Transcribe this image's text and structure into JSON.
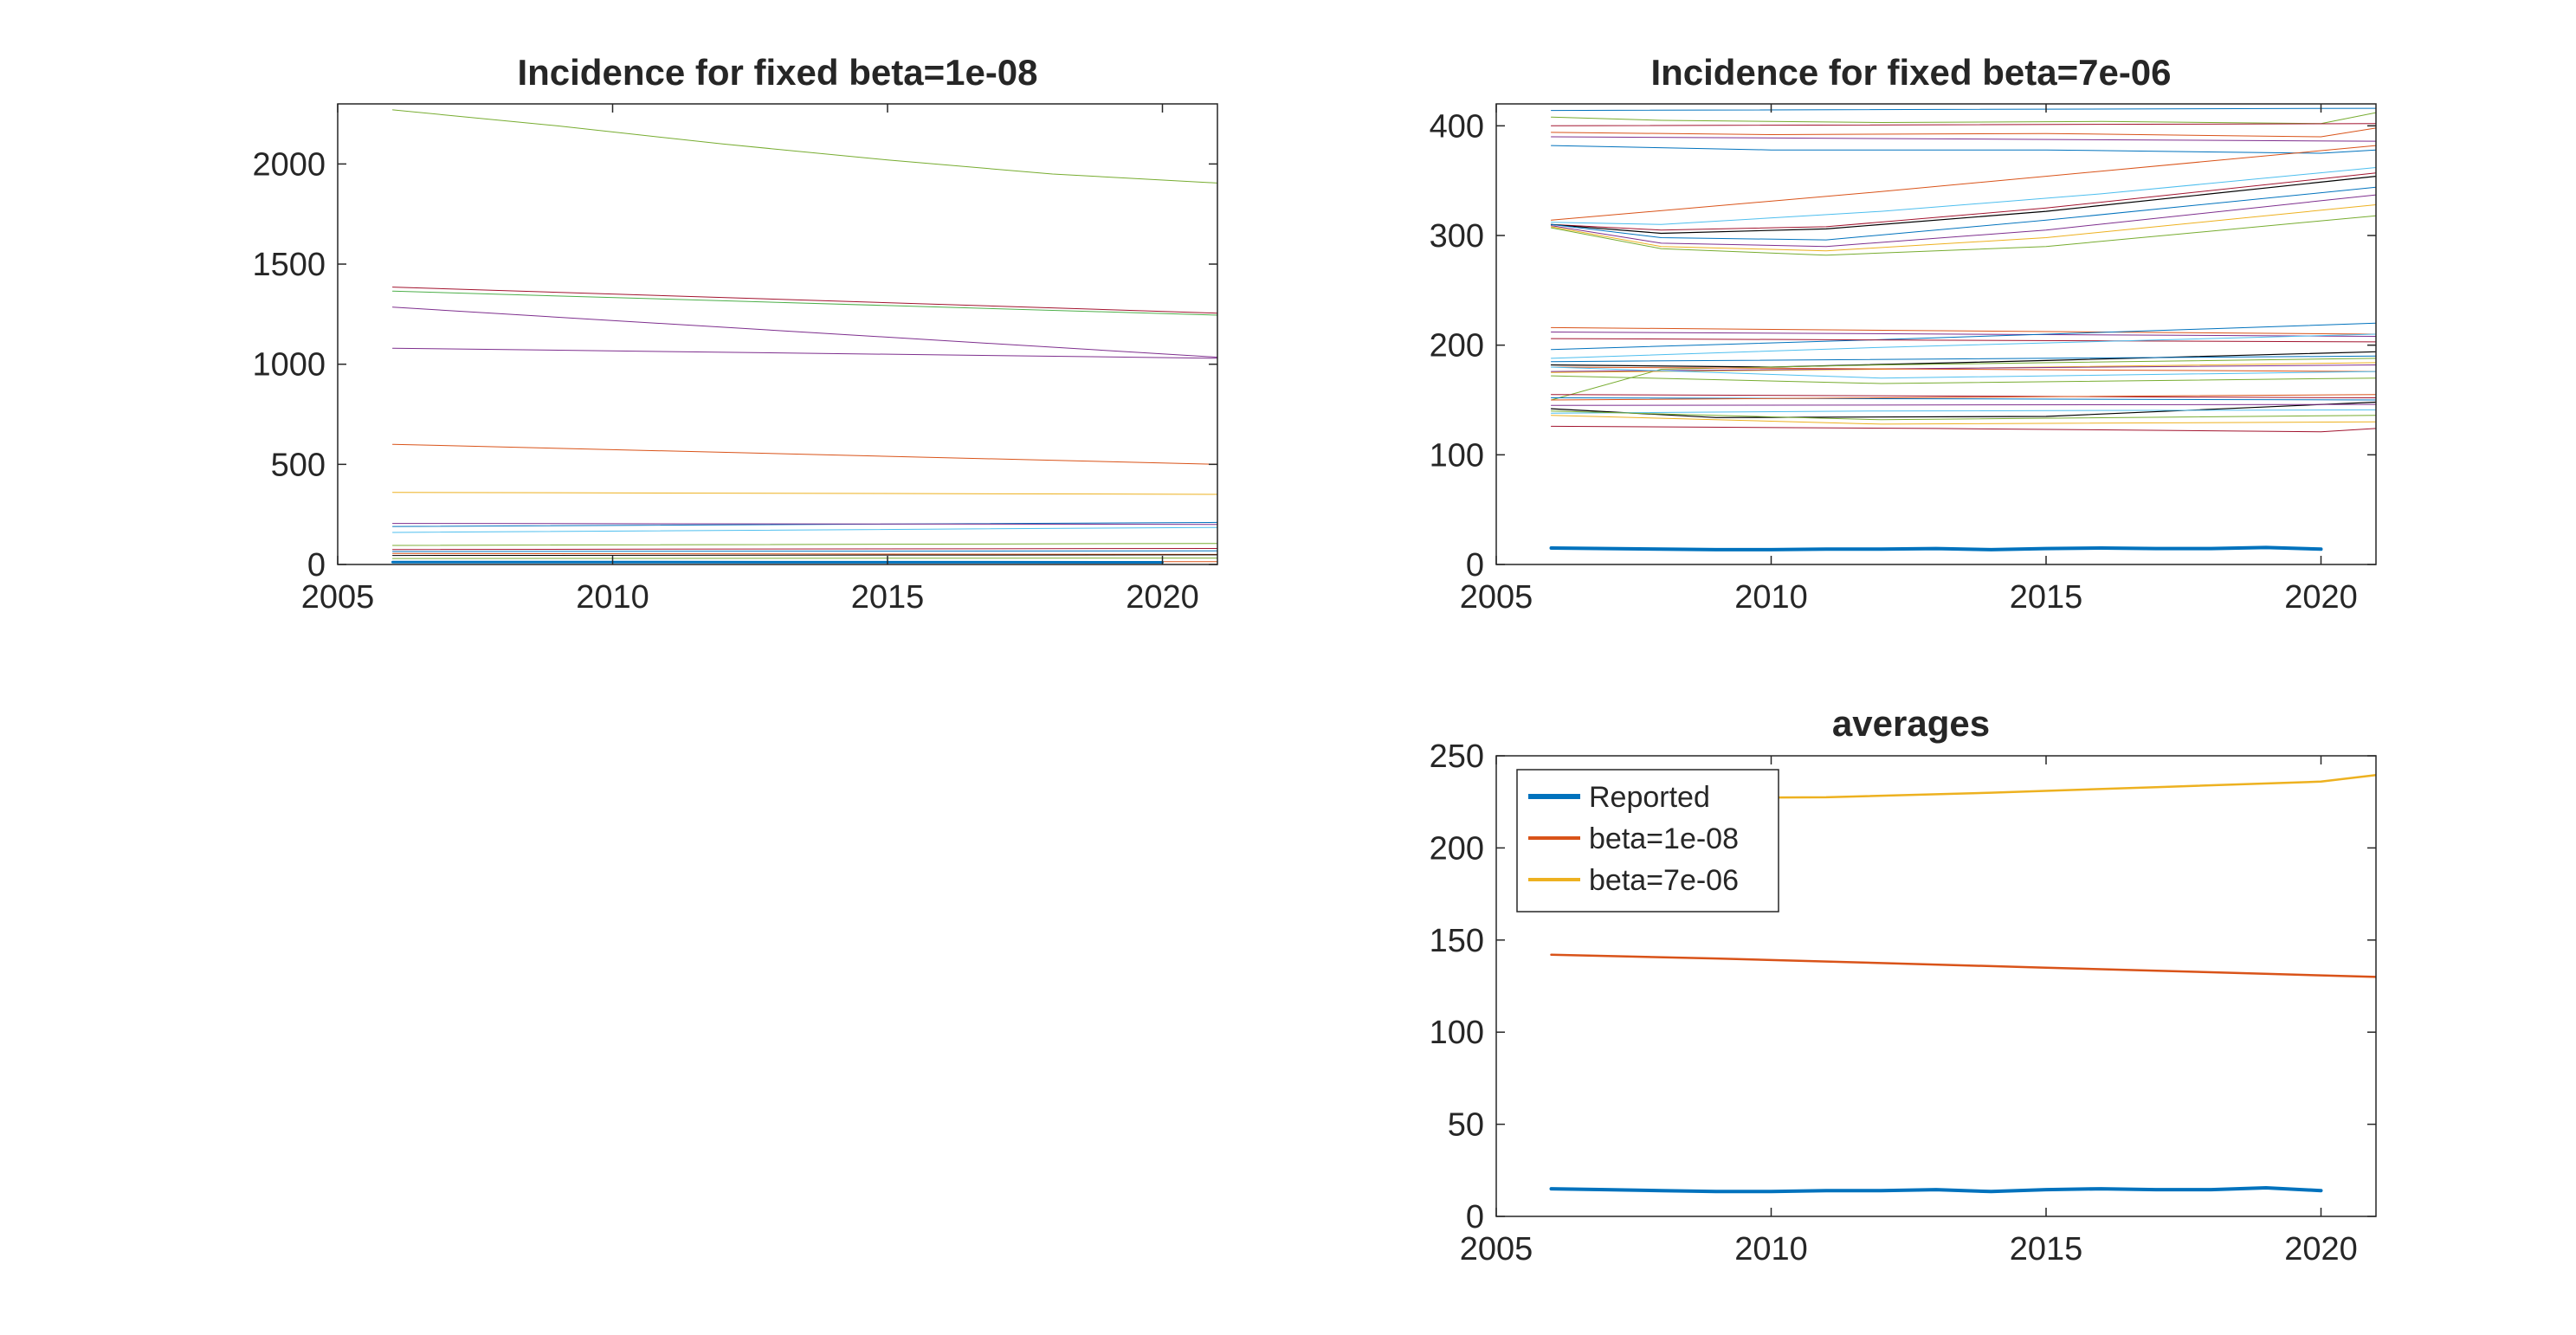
{
  "chart_data": [
    {
      "type": "line",
      "title": "Incidence for fixed beta=1e-08",
      "xlim": [
        2005,
        2021
      ],
      "ylim": [
        0,
        2300
      ],
      "xticks": [
        2005,
        2010,
        2015,
        2020
      ],
      "yticks": [
        0,
        500,
        1000,
        1500,
        2000
      ],
      "grid": false,
      "series": [
        {
          "color": "#77ac30",
          "width": 1,
          "x": [
            2006,
            2009,
            2012,
            2015,
            2018,
            2021
          ],
          "y": [
            2270,
            2190,
            2100,
            2020,
            1950,
            1905
          ]
        },
        {
          "color": "#a2142f",
          "width": 1,
          "x": [
            2006,
            2021
          ],
          "y": [
            1385,
            1255
          ]
        },
        {
          "color": "#4daf4a",
          "width": 1,
          "x": [
            2006,
            2021
          ],
          "y": [
            1365,
            1245
          ]
        },
        {
          "color": "#7e2f8e",
          "width": 1,
          "x": [
            2006,
            2021
          ],
          "y": [
            1285,
            1035
          ]
        },
        {
          "color": "#7e2f8e",
          "width": 1,
          "x": [
            2006,
            2021
          ],
          "y": [
            1080,
            1030
          ]
        },
        {
          "color": "#d95319",
          "width": 1,
          "x": [
            2006,
            2021
          ],
          "y": [
            600,
            500
          ]
        },
        {
          "color": "#edb120",
          "width": 1,
          "x": [
            2006,
            2021
          ],
          "y": [
            360,
            350
          ]
        },
        {
          "color": "#0072bd",
          "width": 1,
          "x": [
            2006,
            2021
          ],
          "y": [
            190,
            210
          ]
        },
        {
          "color": "#7e2f8e",
          "width": 1,
          "x": [
            2006,
            2021
          ],
          "y": [
            205,
            200
          ]
        },
        {
          "color": "#4dbeee",
          "width": 1,
          "x": [
            2006,
            2021
          ],
          "y": [
            160,
            185
          ]
        },
        {
          "color": "#77ac30",
          "width": 1,
          "x": [
            2006,
            2021
          ],
          "y": [
            95,
            105
          ]
        },
        {
          "color": "#a2142f",
          "width": 1,
          "x": [
            2006,
            2021
          ],
          "y": [
            75,
            80
          ]
        },
        {
          "color": "#0072bd",
          "width": 1,
          "x": [
            2006,
            2021
          ],
          "y": [
            65,
            68
          ]
        },
        {
          "color": "#d95319",
          "width": 1,
          "x": [
            2006,
            2021
          ],
          "y": [
            55,
            50
          ]
        },
        {
          "color": "#000000",
          "width": 1,
          "x": [
            2006,
            2021
          ],
          "y": [
            45,
            48
          ]
        },
        {
          "color": "#77ac30",
          "width": 1,
          "x": [
            2006,
            2021
          ],
          "y": [
            30,
            32
          ]
        },
        {
          "color": "#d95319",
          "width": 1,
          "x": [
            2006,
            2021
          ],
          "y": [
            15,
            14
          ]
        },
        {
          "color": "#0072bd",
          "width": 3,
          "x": [
            2006,
            2020
          ],
          "y": [
            12,
            11
          ]
        }
      ]
    },
    {
      "type": "line",
      "title": "Incidence for fixed beta=7e-06",
      "xlim": [
        2005,
        2021
      ],
      "ylim": [
        0,
        420
      ],
      "xticks": [
        2005,
        2010,
        2015,
        2020
      ],
      "yticks": [
        0,
        100,
        200,
        300,
        400
      ],
      "grid": false,
      "series": [
        {
          "color": "#0072bd",
          "width": 1,
          "x": [
            2006,
            2021
          ],
          "y": [
            414,
            416
          ]
        },
        {
          "color": "#77ac30",
          "width": 1,
          "x": [
            2006,
            2008,
            2012,
            2016,
            2020,
            2021
          ],
          "y": [
            408,
            405,
            403,
            404,
            402,
            412
          ]
        },
        {
          "color": "#a2142f",
          "width": 1,
          "x": [
            2006,
            2021
          ],
          "y": [
            400,
            402
          ]
        },
        {
          "color": "#d95319",
          "width": 1,
          "x": [
            2006,
            2010,
            2015,
            2020,
            2021
          ],
          "y": [
            394,
            392,
            393,
            390,
            398
          ]
        },
        {
          "color": "#7e2f8e",
          "width": 1,
          "x": [
            2006,
            2021
          ],
          "y": [
            390,
            386
          ]
        },
        {
          "color": "#0072bd",
          "width": 1,
          "x": [
            2006,
            2010,
            2015,
            2020,
            2021
          ],
          "y": [
            382,
            378,
            378,
            375,
            378
          ]
        },
        {
          "color": "#d95319",
          "width": 1,
          "x": [
            2006,
            2012,
            2018,
            2021
          ],
          "y": [
            314,
            340,
            368,
            382
          ]
        },
        {
          "color": "#4dbeee",
          "width": 1,
          "x": [
            2006,
            2008,
            2012,
            2016,
            2021
          ],
          "y": [
            312,
            310,
            322,
            338,
            362
          ]
        },
        {
          "color": "#a2142f",
          "width": 1,
          "x": [
            2006,
            2008,
            2011,
            2015,
            2021
          ],
          "y": [
            310,
            305,
            308,
            325,
            357
          ]
        },
        {
          "color": "#000000",
          "width": 1.2,
          "x": [
            2006,
            2008,
            2011,
            2015,
            2021
          ],
          "y": [
            310,
            302,
            306,
            322,
            354
          ]
        },
        {
          "color": "#0072bd",
          "width": 1,
          "x": [
            2006,
            2008,
            2011,
            2015,
            2021
          ],
          "y": [
            310,
            298,
            296,
            314,
            344
          ]
        },
        {
          "color": "#7e2f8e",
          "width": 1,
          "x": [
            2006,
            2008,
            2011,
            2015,
            2021
          ],
          "y": [
            309,
            293,
            290,
            305,
            337
          ]
        },
        {
          "color": "#edb120",
          "width": 1,
          "x": [
            2006,
            2008,
            2011,
            2015,
            2021
          ],
          "y": [
            308,
            290,
            286,
            298,
            328
          ]
        },
        {
          "color": "#77ac30",
          "width": 1,
          "x": [
            2006,
            2008,
            2011,
            2015,
            2021
          ],
          "y": [
            307,
            288,
            282,
            290,
            318
          ]
        },
        {
          "color": "#d95319",
          "width": 1,
          "x": [
            2006,
            2021
          ],
          "y": [
            216,
            210
          ]
        },
        {
          "color": "#7e2f8e",
          "width": 1,
          "x": [
            2006,
            2021
          ],
          "y": [
            212,
            208
          ]
        },
        {
          "color": "#0072bd",
          "width": 1,
          "x": [
            2006,
            2012,
            2018,
            2021
          ],
          "y": [
            196,
            205,
            215,
            220
          ]
        },
        {
          "color": "#a2142f",
          "width": 1,
          "x": [
            2006,
            2021
          ],
          "y": [
            206,
            203
          ]
        },
        {
          "color": "#4dbeee",
          "width": 1,
          "x": [
            2006,
            2012,
            2021
          ],
          "y": [
            188,
            198,
            210
          ]
        },
        {
          "color": "#000000",
          "width": 1.2,
          "x": [
            2006,
            2010,
            2015,
            2021
          ],
          "y": [
            182,
            180,
            186,
            194
          ]
        },
        {
          "color": "#0072bd",
          "width": 1,
          "x": [
            2006,
            2021
          ],
          "y": [
            185,
            190
          ]
        },
        {
          "color": "#77ac30",
          "width": 1,
          "x": [
            2006,
            2008,
            2012,
            2021
          ],
          "y": [
            150,
            178,
            182,
            188
          ]
        },
        {
          "color": "#edb120",
          "width": 1,
          "x": [
            2006,
            2012,
            2021
          ],
          "y": [
            175,
            178,
            184
          ]
        },
        {
          "color": "#7e2f8e",
          "width": 1,
          "x": [
            2006,
            2021
          ],
          "y": [
            176,
            182
          ]
        },
        {
          "color": "#d95319",
          "width": 1,
          "x": [
            2006,
            2021
          ],
          "y": [
            180,
            176
          ]
        },
        {
          "color": "#4dbeee",
          "width": 1,
          "x": [
            2006,
            2012,
            2021
          ],
          "y": [
            180,
            170,
            176
          ]
        },
        {
          "color": "#77ac30",
          "width": 1,
          "x": [
            2006,
            2012,
            2021
          ],
          "y": [
            172,
            165,
            170
          ]
        },
        {
          "color": "#a2142f",
          "width": 1,
          "x": [
            2006,
            2021
          ],
          "y": [
            155,
            152
          ]
        },
        {
          "color": "#0072bd",
          "width": 1,
          "x": [
            2006,
            2021
          ],
          "y": [
            152,
            150
          ]
        },
        {
          "color": "#d95319",
          "width": 1,
          "x": [
            2006,
            2021
          ],
          "y": [
            150,
            155
          ]
        },
        {
          "color": "#000000",
          "width": 1.2,
          "x": [
            2006,
            2009,
            2015,
            2021
          ],
          "y": [
            142,
            134,
            135,
            148
          ]
        },
        {
          "color": "#7e2f8e",
          "width": 1,
          "x": [
            2006,
            2021
          ],
          "y": [
            145,
            146
          ]
        },
        {
          "color": "#4dbeee",
          "width": 1,
          "x": [
            2006,
            2012,
            2021
          ],
          "y": [
            138,
            140,
            141
          ]
        },
        {
          "color": "#77ac30",
          "width": 1,
          "x": [
            2006,
            2012,
            2021
          ],
          "y": [
            140,
            132,
            136
          ]
        },
        {
          "color": "#edb120",
          "width": 1,
          "x": [
            2006,
            2012,
            2021
          ],
          "y": [
            136,
            128,
            130
          ]
        },
        {
          "color": "#a2142f",
          "width": 1,
          "x": [
            2006,
            2013,
            2020,
            2021
          ],
          "y": [
            126,
            124,
            121,
            124
          ]
        },
        {
          "color": "#0072bd",
          "width": 4,
          "x": [
            2006,
            2007,
            2008,
            2009,
            2010,
            2011,
            2012,
            2013,
            2014,
            2015,
            2016,
            2017,
            2018,
            2019,
            2020
          ],
          "y": [
            15,
            14.5,
            14,
            13.5,
            13.5,
            14,
            14,
            14.5,
            13.5,
            14.5,
            15,
            14.5,
            14.5,
            15.5,
            14
          ]
        }
      ]
    },
    {
      "type": "line",
      "title": "averages",
      "xlim": [
        2005,
        2021
      ],
      "ylim": [
        0,
        250
      ],
      "xticks": [
        2005,
        2010,
        2015,
        2020
      ],
      "yticks": [
        0,
        50,
        100,
        150,
        200,
        250
      ],
      "grid": false,
      "legend": "top-left",
      "series": [
        {
          "name": "Reported",
          "color": "#0072bd",
          "width": 4,
          "x": [
            2006,
            2007,
            2008,
            2009,
            2010,
            2011,
            2012,
            2013,
            2014,
            2015,
            2016,
            2017,
            2018,
            2019,
            2020
          ],
          "y": [
            15,
            14.5,
            14,
            13.5,
            13.5,
            14,
            14,
            14.5,
            13.5,
            14.5,
            15,
            14.5,
            14.5,
            15.5,
            14
          ]
        },
        {
          "name": "beta=1e-08",
          "color": "#d95319",
          "width": 2.5,
          "x": [
            2006,
            2009,
            2012,
            2015,
            2018,
            2021
          ],
          "y": [
            142,
            140,
            137.5,
            135,
            132.5,
            130
          ]
        },
        {
          "name": "beta=7e-06",
          "color": "#edb120",
          "width": 2.5,
          "x": [
            2006,
            2008,
            2011,
            2014,
            2017,
            2020,
            2021
          ],
          "y": [
            226,
            227,
            227.5,
            230,
            233,
            236,
            239.5
          ]
        }
      ]
    }
  ]
}
